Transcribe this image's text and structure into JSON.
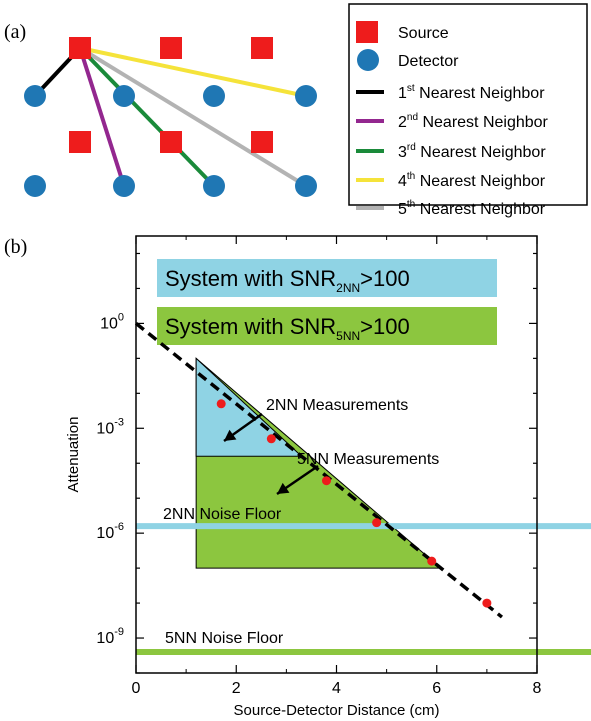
{
  "panel_a": {
    "label": "(a)",
    "legend": [
      {
        "key": "source",
        "text": "Source",
        "shape": "square",
        "color": "#ee1c1c"
      },
      {
        "key": "detector",
        "text": "Detector",
        "shape": "circle",
        "color": "#1f77b4"
      },
      {
        "key": "nn1",
        "ord": "1",
        "sup": "st",
        "rest": " Nearest Neighbor",
        "color": "#000000"
      },
      {
        "key": "nn2",
        "ord": "2",
        "sup": "nd",
        "rest": " Nearest Neighbor",
        "color": "#93278f"
      },
      {
        "key": "nn3",
        "ord": "3",
        "sup": "rd",
        "rest": " Nearest Neighbor",
        "color": "#1a8a3a"
      },
      {
        "key": "nn4",
        "ord": "4",
        "sup": "th",
        "rest": " Nearest Neighbor",
        "color": "#f5e33a"
      },
      {
        "key": "nn5",
        "ord": "5",
        "sup": "th",
        "rest": " Nearest Neighbor",
        "color": "#b3b3b3"
      }
    ]
  },
  "panel_b": {
    "label": "(b)",
    "banner_2nn": {
      "pre": "System with SNR",
      "sub": "2NN",
      "post": ">100",
      "color": "#8fd3e4"
    },
    "banner_5nn": {
      "pre": "System with SNR",
      "sub": "5NN",
      "post": ">100",
      "color": "#8cc63f"
    },
    "annotation_2nn": "2NN Measurements",
    "annotation_5nn": "5NN Measurements",
    "noise_2nn_label": "2NN Noise Floor",
    "noise_5nn_label": "5NN Noise Floor"
  },
  "chart_data": {
    "type": "scatter",
    "xlabel": "Source-Detector Distance (cm)",
    "ylabel": "Attenuation",
    "xlim": [
      0,
      8
    ],
    "ylim_log10": [
      -10,
      2.5
    ],
    "log_y": true,
    "x_ticks": [
      0,
      2,
      4,
      6,
      8
    ],
    "y_ticks": [
      {
        "exp": 0,
        "base": "10",
        "sup": "0"
      },
      {
        "exp": -3,
        "base": "10",
        "sup": "-3"
      },
      {
        "exp": -6,
        "base": "10",
        "sup": "-6"
      },
      {
        "exp": -9,
        "base": "10",
        "sup": "-9"
      }
    ],
    "points": [
      {
        "x": 1.7,
        "y_log10": -2.3
      },
      {
        "x": 2.7,
        "y_log10": -3.3
      },
      {
        "x": 3.8,
        "y_log10": -4.5
      },
      {
        "x": 4.8,
        "y_log10": -5.7
      },
      {
        "x": 5.9,
        "y_log10": -6.8
      },
      {
        "x": 7.0,
        "y_log10": -8.0
      }
    ],
    "trend_line": {
      "x": [
        0,
        7.3
      ],
      "y_log10": [
        0,
        -8.4
      ],
      "color": "#000000"
    },
    "point_color": "#ee1c1c",
    "noise_floor_2nn_log10": -5.8,
    "noise_floor_5nn_log10": -9.4,
    "noise_2nn_color": "#8fd3e4",
    "noise_5nn_color": "#8cc63f",
    "region_2nn": {
      "x": [
        1.2,
        3.3
      ],
      "y_log10_top": -1.0,
      "y_log10_bottom": -3.8
    },
    "region_5nn": {
      "x": [
        1.2,
        6.3
      ],
      "y_log10_top": -1.0,
      "y_log10_bottom": -7.0
    },
    "grid": false
  }
}
